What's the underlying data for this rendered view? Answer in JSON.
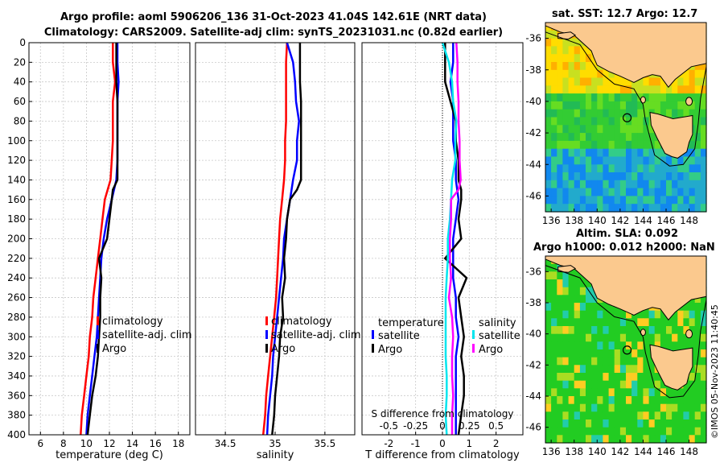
{
  "header": {
    "title_line1": "Argo profile: aoml 5906206_136 31-Oct-2023 41.04S 142.61E (NRT data)",
    "title_line2": "Climatology: CARS2009. Satellite-adj clim: synTS_20231031.nc (0.82d earlier)"
  },
  "colors": {
    "climatology": "#ff0000",
    "satellite": "#0000ff",
    "argo": "#000000",
    "sal_sat": "#00e5ee",
    "sal_argo": "#ff00ff",
    "land": "#fbc98e"
  },
  "chart_data": [
    {
      "type": "line",
      "name": "temperature-profile",
      "xlabel": "temperature (deg C)",
      "ylabel": "",
      "xlim": [
        5,
        19
      ],
      "ylim": [
        0,
        400
      ],
      "xticks": [
        "6",
        "8",
        "10",
        "12",
        "14",
        "16",
        "18"
      ],
      "yticks": [
        "0",
        "20",
        "40",
        "60",
        "80",
        "100",
        "120",
        "140",
        "160",
        "180",
        "200",
        "220",
        "240",
        "260",
        "280",
        "300",
        "320",
        "340",
        "360",
        "380",
        "400"
      ],
      "series": [
        {
          "name": "climatology",
          "depth": [
            0,
            20,
            40,
            60,
            80,
            100,
            120,
            140,
            160,
            180,
            200,
            220,
            240,
            260,
            280,
            300,
            320,
            340,
            360,
            380,
            400
          ],
          "values": [
            12.3,
            12.3,
            12.5,
            12.3,
            12.3,
            12.3,
            12.2,
            12.1,
            11.6,
            11.4,
            11.2,
            11.0,
            10.8,
            10.6,
            10.5,
            10.3,
            10.2,
            10.0,
            9.8,
            9.6,
            9.5
          ]
        },
        {
          "name": "satellite-adj. clim",
          "depth": [
            0,
            20,
            40,
            60,
            80,
            100,
            120,
            140,
            160,
            180,
            200,
            220,
            240,
            260,
            280,
            300,
            320,
            340,
            360,
            380,
            400
          ],
          "values": [
            12.7,
            12.7,
            12.8,
            12.7,
            12.7,
            12.7,
            12.7,
            12.6,
            12.2,
            11.8,
            11.5,
            11.3,
            11.2,
            11.1,
            11.0,
            10.9,
            10.7,
            10.5,
            10.3,
            10.1,
            10.0
          ]
        },
        {
          "name": "Argo",
          "depth": [
            0,
            20,
            40,
            60,
            80,
            100,
            120,
            140,
            150,
            160,
            180,
            200,
            220,
            240,
            260,
            280,
            300,
            320,
            340,
            360,
            380,
            400
          ],
          "values": [
            12.6,
            12.6,
            12.6,
            12.7,
            12.7,
            12.7,
            12.7,
            12.7,
            12.3,
            12.2,
            12.0,
            11.8,
            11.1,
            11.3,
            11.2,
            11.2,
            11.1,
            11.0,
            10.8,
            10.5,
            10.3,
            10.1
          ]
        }
      ],
      "legend": [
        "climatology",
        "satellite-adj. clim",
        "Argo"
      ],
      "legend_position": "bottom-right"
    },
    {
      "type": "line",
      "name": "salinity-profile",
      "xlabel": "salinity",
      "xlim": [
        34.2,
        35.8
      ],
      "ylim": [
        0,
        400
      ],
      "xticks": [
        "34.5",
        "35",
        "35.5"
      ],
      "series": [
        {
          "name": "climatology",
          "depth": [
            0,
            20,
            40,
            60,
            80,
            100,
            120,
            140,
            160,
            180,
            200,
            220,
            240,
            260,
            280,
            300,
            320,
            340,
            360,
            380,
            400
          ],
          "values": [
            35.12,
            35.11,
            35.11,
            35.11,
            35.11,
            35.1,
            35.1,
            35.09,
            35.07,
            35.05,
            35.04,
            35.03,
            35.02,
            35.01,
            34.99,
            34.97,
            34.95,
            34.93,
            34.91,
            34.9,
            34.88
          ]
        },
        {
          "name": "satellite-adj. clim",
          "depth": [
            0,
            20,
            40,
            60,
            80,
            100,
            120,
            140,
            160,
            180,
            200,
            220,
            240,
            260,
            280,
            300,
            320,
            340,
            360,
            380,
            400
          ],
          "values": [
            35.12,
            35.18,
            35.2,
            35.21,
            35.24,
            35.22,
            35.22,
            35.18,
            35.15,
            35.12,
            35.09,
            35.08,
            35.06,
            35.04,
            35.02,
            35.0,
            34.98,
            34.97,
            34.95,
            34.93,
            34.92
          ]
        },
        {
          "name": "Argo",
          "depth": [
            0,
            20,
            40,
            60,
            80,
            100,
            120,
            140,
            150,
            160,
            180,
            200,
            220,
            240,
            260,
            280,
            300,
            320,
            340,
            360,
            380,
            400
          ],
          "values": [
            35.25,
            35.25,
            35.25,
            35.26,
            35.26,
            35.26,
            35.26,
            35.26,
            35.22,
            35.15,
            35.12,
            35.11,
            35.09,
            35.1,
            35.07,
            35.08,
            35.05,
            35.04,
            35.02,
            35.0,
            34.99,
            34.97
          ]
        }
      ],
      "legend": [
        "climatology",
        "satellite-adj. clim",
        "Argo"
      ],
      "legend_position": "bottom-right"
    },
    {
      "type": "line",
      "name": "difference-profile",
      "xlabel": "T difference from climatology",
      "xlabel_top": "S difference from climatology",
      "xlim": [
        -3,
        3
      ],
      "ylim": [
        0,
        400
      ],
      "xticks": [
        "-2",
        "-1",
        "0",
        "1",
        "2"
      ],
      "sticks": [
        "-0.5",
        "-0.25",
        "0",
        "0.25",
        "0.5"
      ],
      "series": [
        {
          "name": "temperature satellite",
          "depth": [
            0,
            20,
            40,
            60,
            80,
            100,
            120,
            140,
            160,
            180,
            200,
            220,
            240,
            260,
            280,
            300,
            320,
            340,
            360,
            380,
            400
          ],
          "values": [
            0.4,
            0.4,
            0.3,
            0.4,
            0.4,
            0.4,
            0.5,
            0.5,
            0.6,
            0.5,
            0.4,
            0.4,
            0.4,
            0.5,
            0.5,
            0.6,
            0.5,
            0.5,
            0.5,
            0.5,
            0.5
          ]
        },
        {
          "name": "temperature Argo",
          "depth": [
            0,
            20,
            40,
            60,
            80,
            100,
            120,
            140,
            150,
            160,
            180,
            200,
            220,
            240,
            260,
            280,
            300,
            320,
            340,
            360,
            380,
            400
          ],
          "values": [
            0.1,
            0.1,
            0.1,
            0.3,
            0.5,
            0.5,
            0.6,
            0.6,
            0.7,
            0.7,
            0.6,
            0.7,
            0.1,
            0.9,
            0.6,
            0.7,
            0.8,
            0.7,
            0.8,
            0.8,
            0.7,
            0.6
          ]
        },
        {
          "name": "salinity satellite",
          "depth": [
            0,
            20,
            40,
            60,
            80,
            100,
            120,
            140,
            160,
            180,
            200,
            220,
            240,
            260,
            280,
            300,
            320,
            340,
            360,
            380,
            400
          ],
          "values": [
            0.0,
            0.06,
            0.09,
            0.1,
            0.13,
            0.12,
            0.12,
            0.09,
            0.08,
            0.07,
            0.05,
            0.05,
            0.04,
            0.03,
            0.03,
            0.03,
            0.03,
            0.04,
            0.04,
            0.03,
            0.04
          ]
        },
        {
          "name": "salinity Argo",
          "depth": [
            0,
            20,
            40,
            60,
            80,
            100,
            120,
            140,
            150,
            160,
            180,
            200,
            220,
            240,
            260,
            280,
            300,
            320,
            340,
            360,
            380,
            400
          ],
          "values": [
            0.13,
            0.14,
            0.14,
            0.15,
            0.15,
            0.16,
            0.16,
            0.17,
            0.15,
            0.08,
            0.08,
            0.07,
            0.07,
            0.08,
            0.06,
            0.09,
            0.1,
            0.09,
            0.09,
            0.1,
            0.09,
            0.09
          ]
        }
      ],
      "legend_temperature": [
        "temperature",
        "satellite",
        "Argo"
      ],
      "legend_salinity": [
        "salinity",
        "satellite",
        "Argo"
      ],
      "legend_position": "bottom"
    },
    {
      "type": "heatmap",
      "name": "sst-map",
      "title": "sat. SST: 12.7 Argo: 12.7",
      "xticks": [
        "136",
        "138",
        "140",
        "142",
        "144",
        "146",
        "148"
      ],
      "yticks": [
        "-36",
        "-38",
        "-40",
        "-42",
        "-44",
        "-46"
      ],
      "xlim": [
        135.5,
        149.5
      ],
      "ylim": [
        -47,
        -35
      ],
      "argo_position": [
        142.61,
        -41.04
      ]
    },
    {
      "type": "heatmap",
      "name": "sla-map",
      "title_line1": "Altim. SLA: 0.092",
      "title_line2": "Argo h1000: 0.012 h2000: NaN",
      "xticks": [
        "136",
        "138",
        "140",
        "142",
        "144",
        "146",
        "148"
      ],
      "yticks": [
        "-36",
        "-38",
        "-40",
        "-42",
        "-44",
        "-46"
      ],
      "xlim": [
        135.5,
        149.5
      ],
      "ylim": [
        -47,
        -35
      ],
      "argo_position": [
        142.61,
        -41.04
      ]
    }
  ],
  "footer": {
    "credit": "©IMOS 05-Nov-2023 11:40:45"
  }
}
